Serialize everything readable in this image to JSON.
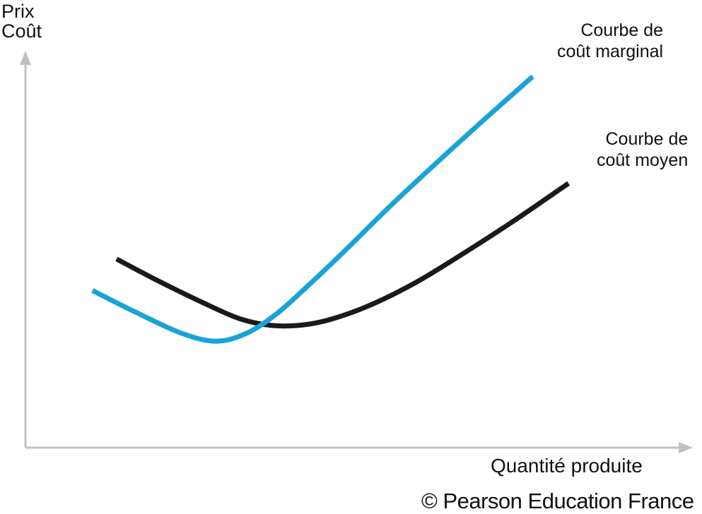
{
  "chart_data": {
    "type": "line",
    "title": "",
    "ylabel_lines": [
      "Prix",
      "Coût"
    ],
    "xlabel": "Quantité produite",
    "xlim": [
      0,
      100
    ],
    "ylim": [
      0,
      100
    ],
    "axis_ticks": false,
    "grid": false,
    "series": [
      {
        "name_lines": [
          "Courbe de",
          "coût marginal"
        ],
        "color": "#1aa3d8",
        "x": [
          10.3,
          17,
          24,
          29.3,
          34,
          38.5,
          43,
          49,
          56,
          63,
          70,
          78
        ],
        "y": [
          45.9,
          39.5,
          33.4,
          31.1,
          33.4,
          38.9,
          46.5,
          57.3,
          70.4,
          82.8,
          94.9,
          108.4
        ]
      },
      {
        "name_lines": [
          "Courbe de",
          "coût moyen"
        ],
        "color": "#1a1a1a",
        "x": [
          14,
          20,
          27,
          33,
          37.8,
          42.5,
          47,
          53,
          60,
          67,
          75,
          83.5
        ],
        "y": [
          55.1,
          49.1,
          42.6,
          37.6,
          35.7,
          35.8,
          37.5,
          41.6,
          48.2,
          56.3,
          66.1,
          77.2
        ]
      }
    ]
  },
  "axes": {
    "axis_color": "#c0c0c0"
  },
  "copyright": "© Pearson Education France"
}
